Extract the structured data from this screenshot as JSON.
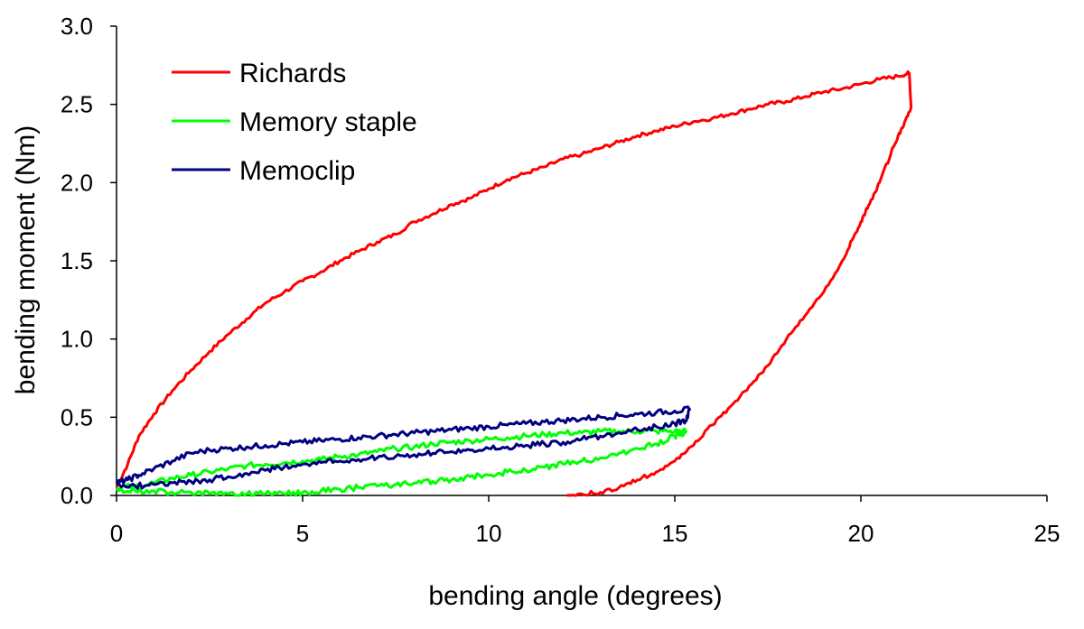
{
  "chart_data": {
    "type": "line",
    "title": "",
    "xlabel": "bending angle (degrees)",
    "ylabel": "bending moment (Nm)",
    "xlim": [
      0,
      25
    ],
    "ylim": [
      0,
      3.0
    ],
    "x_ticks": [
      0,
      5,
      10,
      15,
      20,
      25
    ],
    "y_ticks": [
      "0.0",
      "0.5",
      "1.0",
      "1.5",
      "2.0",
      "2.5",
      "3.0"
    ],
    "grid": false,
    "legend_position": "top-left",
    "series": [
      {
        "name": "Richards",
        "color": "#ff0000",
        "points": [
          [
            0,
            0.05
          ],
          [
            0.3,
            0.2
          ],
          [
            0.6,
            0.38
          ],
          [
            1,
            0.52
          ],
          [
            1.5,
            0.67
          ],
          [
            2,
            0.8
          ],
          [
            2.5,
            0.92
          ],
          [
            3,
            1.03
          ],
          [
            3.5,
            1.13
          ],
          [
            4,
            1.23
          ],
          [
            4.5,
            1.3
          ],
          [
            5,
            1.37
          ],
          [
            5.5,
            1.43
          ],
          [
            6,
            1.5
          ],
          [
            6.5,
            1.56
          ],
          [
            7,
            1.62
          ],
          [
            7.5,
            1.67
          ],
          [
            8,
            1.75
          ],
          [
            8.5,
            1.8
          ],
          [
            9,
            1.86
          ],
          [
            9.5,
            1.9
          ],
          [
            10,
            1.96
          ],
          [
            10.5,
            2.02
          ],
          [
            11,
            2.06
          ],
          [
            11.5,
            2.1
          ],
          [
            12,
            2.15
          ],
          [
            12.5,
            2.18
          ],
          [
            13,
            2.22
          ],
          [
            13.5,
            2.26
          ],
          [
            14,
            2.3
          ],
          [
            14.5,
            2.33
          ],
          [
            15,
            2.36
          ],
          [
            15.5,
            2.39
          ],
          [
            16,
            2.41
          ],
          [
            16.5,
            2.44
          ],
          [
            17,
            2.47
          ],
          [
            17.5,
            2.5
          ],
          [
            18,
            2.52
          ],
          [
            18.5,
            2.55
          ],
          [
            19,
            2.58
          ],
          [
            19.5,
            2.6
          ],
          [
            20,
            2.63
          ],
          [
            20.5,
            2.66
          ],
          [
            21,
            2.68
          ],
          [
            21.3,
            2.7
          ],
          [
            21.35,
            2.48
          ],
          [
            21.2,
            2.4
          ],
          [
            21,
            2.3
          ],
          [
            20.8,
            2.18
          ],
          [
            20.5,
            2.0
          ],
          [
            20.2,
            1.85
          ],
          [
            20,
            1.75
          ],
          [
            19.8,
            1.65
          ],
          [
            19.5,
            1.5
          ],
          [
            19,
            1.3
          ],
          [
            18.5,
            1.15
          ],
          [
            18,
            1.0
          ],
          [
            17.5,
            0.83
          ],
          [
            17,
            0.7
          ],
          [
            16.5,
            0.57
          ],
          [
            16,
            0.45
          ],
          [
            15.5,
            0.32
          ],
          [
            15,
            0.22
          ],
          [
            14.5,
            0.15
          ],
          [
            14,
            0.1
          ],
          [
            13.5,
            0.05
          ],
          [
            13,
            0.02
          ],
          [
            12.5,
            0.01
          ],
          [
            12.1,
            0.0
          ]
        ]
      },
      {
        "name": "Memory staple",
        "color": "#00ff00",
        "points": [
          [
            0,
            0.05
          ],
          [
            0.5,
            0.06
          ],
          [
            1,
            0.08
          ],
          [
            1.5,
            0.11
          ],
          [
            2,
            0.13
          ],
          [
            2.5,
            0.15
          ],
          [
            3,
            0.17
          ],
          [
            3.5,
            0.19
          ],
          [
            4,
            0.2
          ],
          [
            4.5,
            0.21
          ],
          [
            5,
            0.22
          ],
          [
            5.5,
            0.23
          ],
          [
            6,
            0.25
          ],
          [
            6.5,
            0.26
          ],
          [
            7,
            0.28
          ],
          [
            7.5,
            0.3
          ],
          [
            8,
            0.31
          ],
          [
            8.5,
            0.33
          ],
          [
            9,
            0.34
          ],
          [
            9.5,
            0.35
          ],
          [
            10,
            0.36
          ],
          [
            10.5,
            0.37
          ],
          [
            11,
            0.38
          ],
          [
            11.5,
            0.39
          ],
          [
            12,
            0.4
          ],
          [
            12.5,
            0.4
          ],
          [
            13,
            0.41
          ],
          [
            13.5,
            0.41
          ],
          [
            14,
            0.41
          ],
          [
            14.5,
            0.41
          ],
          [
            15,
            0.41
          ],
          [
            15.3,
            0.41
          ],
          [
            15.2,
            0.39
          ],
          [
            15,
            0.38
          ],
          [
            14.5,
            0.33
          ],
          [
            14,
            0.3
          ],
          [
            13.5,
            0.27
          ],
          [
            13,
            0.24
          ],
          [
            12.5,
            0.22
          ],
          [
            12,
            0.2
          ],
          [
            11.5,
            0.18
          ],
          [
            11,
            0.16
          ],
          [
            10.5,
            0.15
          ],
          [
            10,
            0.13
          ],
          [
            9.5,
            0.12
          ],
          [
            9,
            0.1
          ],
          [
            8.5,
            0.09
          ],
          [
            8,
            0.08
          ],
          [
            7.5,
            0.07
          ],
          [
            7,
            0.06
          ],
          [
            6.5,
            0.05
          ],
          [
            6,
            0.04
          ],
          [
            5.5,
            0.03
          ],
          [
            5,
            0.02
          ],
          [
            4.5,
            0.01
          ],
          [
            4,
            0.01
          ],
          [
            3.5,
            0.01
          ],
          [
            3,
            0.01
          ],
          [
            2.5,
            0.01
          ],
          [
            2,
            0.02
          ],
          [
            1.5,
            0.02
          ],
          [
            1,
            0.03
          ],
          [
            0.5,
            0.03
          ],
          [
            0,
            0.04
          ]
        ]
      },
      {
        "name": "Memoclip",
        "color": "#000080",
        "points": [
          [
            0,
            0.08
          ],
          [
            0.3,
            0.1
          ],
          [
            0.6,
            0.13
          ],
          [
            1,
            0.17
          ],
          [
            1.5,
            0.22
          ],
          [
            2,
            0.27
          ],
          [
            2.5,
            0.29
          ],
          [
            3,
            0.3
          ],
          [
            3.5,
            0.31
          ],
          [
            4,
            0.32
          ],
          [
            4.5,
            0.33
          ],
          [
            5,
            0.34
          ],
          [
            5.5,
            0.35
          ],
          [
            6,
            0.36
          ],
          [
            6.5,
            0.37
          ],
          [
            7,
            0.38
          ],
          [
            7.5,
            0.39
          ],
          [
            8,
            0.4
          ],
          [
            8.5,
            0.41
          ],
          [
            9,
            0.42
          ],
          [
            9.5,
            0.43
          ],
          [
            10,
            0.44
          ],
          [
            10.5,
            0.45
          ],
          [
            11,
            0.46
          ],
          [
            11.5,
            0.47
          ],
          [
            12,
            0.48
          ],
          [
            12.5,
            0.49
          ],
          [
            13,
            0.5
          ],
          [
            13.5,
            0.51
          ],
          [
            14,
            0.52
          ],
          [
            14.5,
            0.53
          ],
          [
            15,
            0.54
          ],
          [
            15.4,
            0.55
          ],
          [
            15.3,
            0.48
          ],
          [
            15,
            0.46
          ],
          [
            14.5,
            0.44
          ],
          [
            14,
            0.42
          ],
          [
            13.5,
            0.4
          ],
          [
            13,
            0.38
          ],
          [
            12.5,
            0.36
          ],
          [
            12,
            0.34
          ],
          [
            11.5,
            0.33
          ],
          [
            11,
            0.32
          ],
          [
            10.5,
            0.31
          ],
          [
            10,
            0.3
          ],
          [
            9.5,
            0.29
          ],
          [
            9,
            0.28
          ],
          [
            8.5,
            0.27
          ],
          [
            8,
            0.26
          ],
          [
            7.5,
            0.25
          ],
          [
            7,
            0.24
          ],
          [
            6.5,
            0.23
          ],
          [
            6,
            0.22
          ],
          [
            5.5,
            0.21
          ],
          [
            5,
            0.2
          ],
          [
            4.5,
            0.18
          ],
          [
            4,
            0.16
          ],
          [
            3.5,
            0.14
          ],
          [
            3,
            0.12
          ],
          [
            2.5,
            0.1
          ],
          [
            2,
            0.09
          ],
          [
            1.5,
            0.08
          ],
          [
            1,
            0.07
          ],
          [
            0.5,
            0.06
          ],
          [
            0,
            0.07
          ]
        ]
      }
    ]
  }
}
